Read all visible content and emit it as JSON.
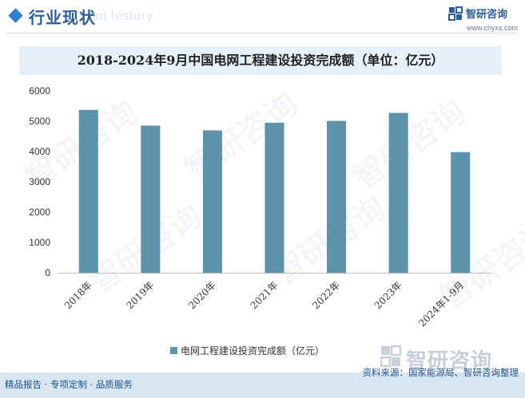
{
  "header": {
    "title": "行业现状",
    "ghost_text": "ent history",
    "logo_text": "智研咨询",
    "logo_url": "www.chyxx.com",
    "logo_icon": "zhiyan-logo-icon"
  },
  "chart_data": {
    "type": "bar",
    "title": "2018-2024年9月中国电网工程建设投资完成额（单位：亿元）",
    "categories": [
      "2018年",
      "2019年",
      "2020年",
      "2021年",
      "2022年",
      "2023年",
      "2024年1-9月"
    ],
    "series": [
      {
        "name": "电网工程建设投资完成额（亿元）",
        "values": [
          5374,
          4856,
          4699,
          4951,
          5012,
          5275,
          3982
        ],
        "color": "#5f93a9"
      }
    ],
    "ylim": [
      0,
      6000
    ],
    "yticks": [
      0,
      1000,
      2000,
      3000,
      4000,
      5000,
      6000
    ],
    "grid": false,
    "legend_position": "bottom"
  },
  "watermark": {
    "text": "智研咨询"
  },
  "footer": {
    "brand": "智研咨询",
    "left_text": "精品报告 · 专项定制 · 品质服务",
    "right_text": "资料来源：国家能源局、智研咨询整理"
  }
}
